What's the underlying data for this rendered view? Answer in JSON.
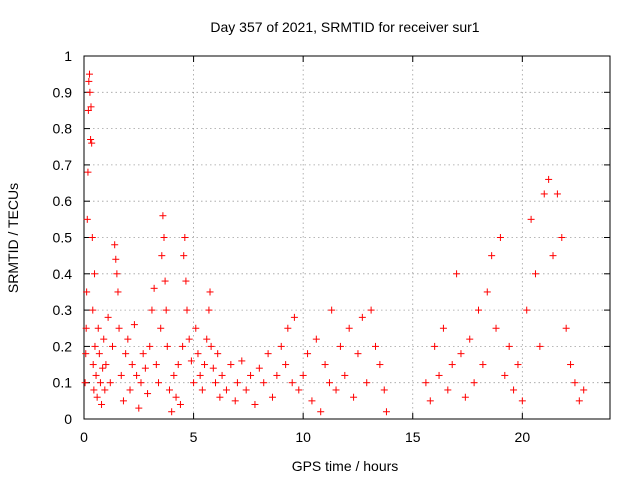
{
  "chart_data": {
    "type": "scatter",
    "title": "Day 357 of 2021, SRMTID for receiver sur1",
    "xlabel": "GPS time / hours",
    "ylabel": "SRMTID / TECUs",
    "xlim": [
      0,
      24
    ],
    "ylim": [
      0,
      1
    ],
    "xticks": [
      0,
      5,
      10,
      15,
      20
    ],
    "yticks": [
      0,
      0.1,
      0.2,
      0.3,
      0.4,
      0.5,
      0.6,
      0.7,
      0.8,
      0.9,
      1
    ],
    "xtick_labels": [
      "0",
      "5",
      "10",
      "15",
      "20"
    ],
    "ytick_labels": [
      "0",
      "0.1",
      "0.2",
      "0.3",
      "0.4",
      "0.5",
      "0.6",
      "0.7",
      "0.8",
      "0.9",
      "1"
    ],
    "grid": true,
    "marker": "+",
    "color": "#ff0000",
    "series": [
      {
        "name": "sur1",
        "points": [
          [
            0.05,
            0.1
          ],
          [
            0.08,
            0.18
          ],
          [
            0.1,
            0.25
          ],
          [
            0.12,
            0.35
          ],
          [
            0.15,
            0.55
          ],
          [
            0.18,
            0.68
          ],
          [
            0.2,
            0.85
          ],
          [
            0.22,
            0.93
          ],
          [
            0.25,
            0.95
          ],
          [
            0.27,
            0.9
          ],
          [
            0.3,
            0.77
          ],
          [
            0.32,
            0.86
          ],
          [
            0.35,
            0.76
          ],
          [
            0.38,
            0.5
          ],
          [
            0.4,
            0.3
          ],
          [
            0.42,
            0.15
          ],
          [
            0.45,
            0.08
          ],
          [
            0.48,
            0.4
          ],
          [
            0.5,
            0.2
          ],
          [
            0.55,
            0.12
          ],
          [
            0.6,
            0.06
          ],
          [
            0.65,
            0.25
          ],
          [
            0.7,
            0.18
          ],
          [
            0.75,
            0.1
          ],
          [
            0.8,
            0.04
          ],
          [
            0.85,
            0.14
          ],
          [
            0.9,
            0.22
          ],
          [
            0.95,
            0.08
          ],
          [
            1.0,
            0.15
          ],
          [
            1.1,
            0.28
          ],
          [
            1.2,
            0.1
          ],
          [
            1.3,
            0.2
          ],
          [
            1.4,
            0.48
          ],
          [
            1.45,
            0.44
          ],
          [
            1.5,
            0.4
          ],
          [
            1.55,
            0.35
          ],
          [
            1.6,
            0.25
          ],
          [
            1.7,
            0.12
          ],
          [
            1.8,
            0.05
          ],
          [
            1.9,
            0.18
          ],
          [
            2.0,
            0.22
          ],
          [
            2.1,
            0.08
          ],
          [
            2.2,
            0.15
          ],
          [
            2.3,
            0.26
          ],
          [
            2.4,
            0.12
          ],
          [
            2.5,
            0.03
          ],
          [
            2.6,
            0.1
          ],
          [
            2.7,
            0.18
          ],
          [
            2.8,
            0.14
          ],
          [
            2.9,
            0.07
          ],
          [
            3.0,
            0.2
          ],
          [
            3.1,
            0.3
          ],
          [
            3.2,
            0.36
          ],
          [
            3.3,
            0.15
          ],
          [
            3.4,
            0.1
          ],
          [
            3.5,
            0.25
          ],
          [
            3.55,
            0.45
          ],
          [
            3.6,
            0.56
          ],
          [
            3.65,
            0.5
          ],
          [
            3.7,
            0.38
          ],
          [
            3.75,
            0.3
          ],
          [
            3.8,
            0.2
          ],
          [
            3.9,
            0.08
          ],
          [
            4.0,
            0.02
          ],
          [
            4.1,
            0.12
          ],
          [
            4.2,
            0.06
          ],
          [
            4.3,
            0.15
          ],
          [
            4.4,
            0.04
          ],
          [
            4.5,
            0.2
          ],
          [
            4.55,
            0.45
          ],
          [
            4.6,
            0.5
          ],
          [
            4.65,
            0.38
          ],
          [
            4.7,
            0.3
          ],
          [
            4.8,
            0.22
          ],
          [
            4.9,
            0.16
          ],
          [
            5.0,
            0.1
          ],
          [
            5.1,
            0.25
          ],
          [
            5.2,
            0.18
          ],
          [
            5.3,
            0.12
          ],
          [
            5.4,
            0.08
          ],
          [
            5.5,
            0.15
          ],
          [
            5.6,
            0.22
          ],
          [
            5.7,
            0.3
          ],
          [
            5.75,
            0.35
          ],
          [
            5.8,
            0.2
          ],
          [
            5.9,
            0.14
          ],
          [
            6.0,
            0.1
          ],
          [
            6.1,
            0.18
          ],
          [
            6.2,
            0.06
          ],
          [
            6.3,
            0.12
          ],
          [
            6.5,
            0.08
          ],
          [
            6.7,
            0.15
          ],
          [
            6.9,
            0.05
          ],
          [
            7.0,
            0.1
          ],
          [
            7.2,
            0.16
          ],
          [
            7.4,
            0.08
          ],
          [
            7.6,
            0.12
          ],
          [
            7.8,
            0.04
          ],
          [
            8.0,
            0.14
          ],
          [
            8.2,
            0.1
          ],
          [
            8.4,
            0.18
          ],
          [
            8.6,
            0.06
          ],
          [
            8.8,
            0.12
          ],
          [
            9.0,
            0.2
          ],
          [
            9.2,
            0.15
          ],
          [
            9.3,
            0.25
          ],
          [
            9.5,
            0.1
          ],
          [
            9.6,
            0.28
          ],
          [
            9.8,
            0.08
          ],
          [
            10.0,
            0.12
          ],
          [
            10.2,
            0.18
          ],
          [
            10.4,
            0.05
          ],
          [
            10.6,
            0.22
          ],
          [
            10.8,
            0.02
          ],
          [
            11.0,
            0.15
          ],
          [
            11.2,
            0.1
          ],
          [
            11.3,
            0.3
          ],
          [
            11.5,
            0.08
          ],
          [
            11.7,
            0.2
          ],
          [
            11.9,
            0.12
          ],
          [
            12.1,
            0.25
          ],
          [
            12.3,
            0.06
          ],
          [
            12.5,
            0.18
          ],
          [
            12.7,
            0.28
          ],
          [
            12.9,
            0.1
          ],
          [
            13.1,
            0.3
          ],
          [
            13.3,
            0.2
          ],
          [
            13.5,
            0.15
          ],
          [
            13.7,
            0.08
          ],
          [
            13.8,
            0.02
          ],
          [
            15.6,
            0.1
          ],
          [
            15.8,
            0.05
          ],
          [
            16.0,
            0.2
          ],
          [
            16.2,
            0.12
          ],
          [
            16.4,
            0.25
          ],
          [
            16.6,
            0.08
          ],
          [
            16.8,
            0.15
          ],
          [
            17.0,
            0.4
          ],
          [
            17.2,
            0.18
          ],
          [
            17.4,
            0.06
          ],
          [
            17.6,
            0.22
          ],
          [
            17.8,
            0.1
          ],
          [
            18.0,
            0.3
          ],
          [
            18.2,
            0.15
          ],
          [
            18.4,
            0.35
          ],
          [
            18.6,
            0.45
          ],
          [
            18.8,
            0.25
          ],
          [
            19.0,
            0.5
          ],
          [
            19.2,
            0.12
          ],
          [
            19.4,
            0.2
          ],
          [
            19.6,
            0.08
          ],
          [
            19.8,
            0.15
          ],
          [
            20.0,
            0.05
          ],
          [
            20.2,
            0.3
          ],
          [
            20.4,
            0.55
          ],
          [
            20.6,
            0.4
          ],
          [
            20.8,
            0.2
          ],
          [
            21.0,
            0.62
          ],
          [
            21.2,
            0.66
          ],
          [
            21.4,
            0.45
          ],
          [
            21.6,
            0.62
          ],
          [
            21.8,
            0.5
          ],
          [
            22.0,
            0.25
          ],
          [
            22.2,
            0.15
          ],
          [
            22.4,
            0.1
          ],
          [
            22.6,
            0.05
          ],
          [
            22.8,
            0.08
          ]
        ]
      }
    ]
  }
}
